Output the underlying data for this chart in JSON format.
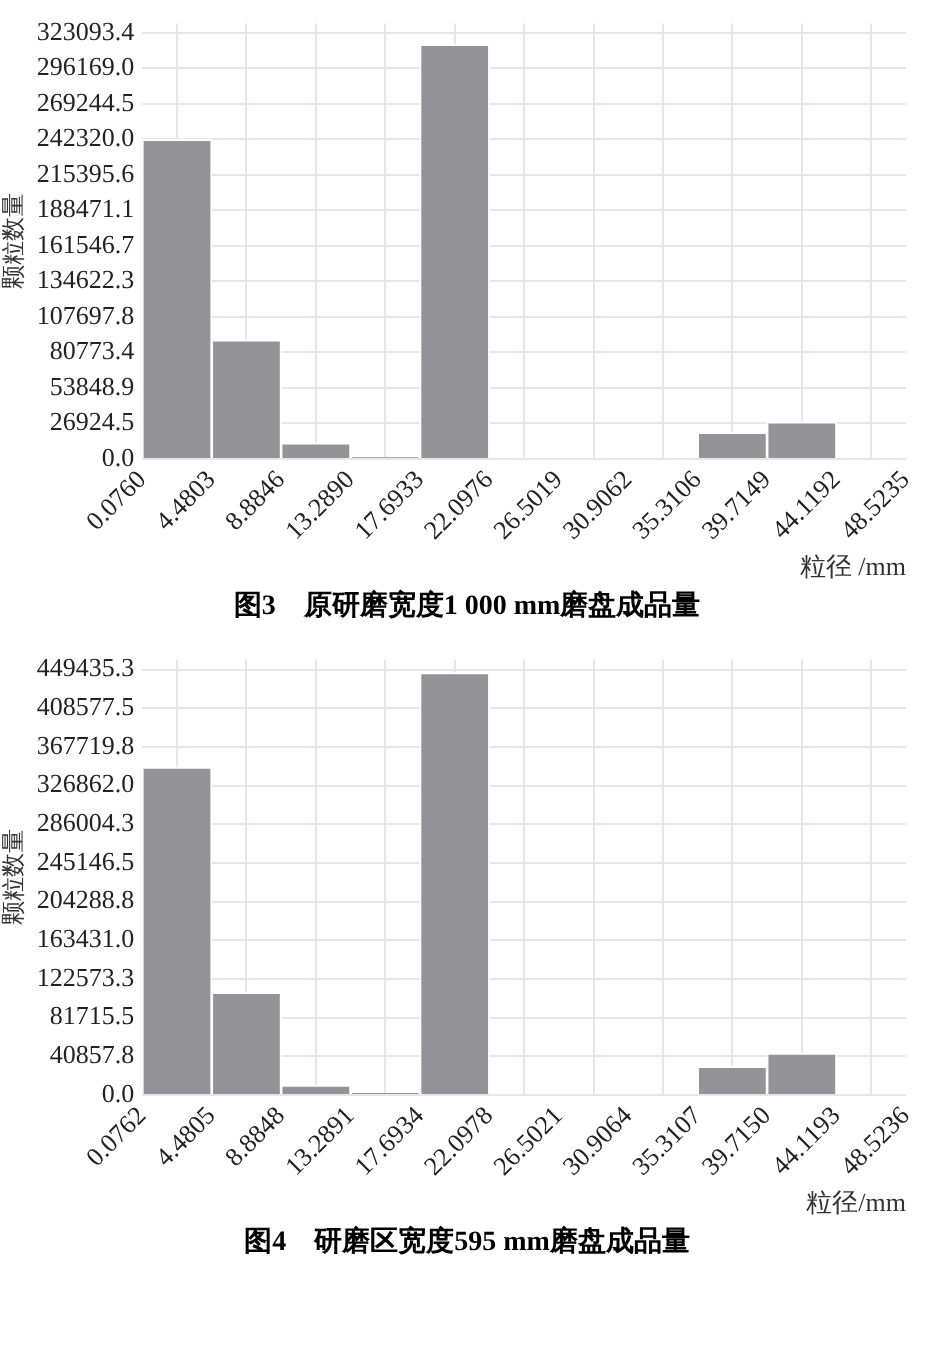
{
  "chart_data": [
    {
      "type": "histogram",
      "title": "图3　原研磨宽度1 000 mm磨盘成品量",
      "xlabel": "粒径 /mm",
      "ylabel": "颗粒数量",
      "color": "#939398",
      "grid": true,
      "bins": [
        0.076,
        4.4803,
        8.8846,
        13.289,
        17.6933,
        22.0976,
        26.5019,
        30.9062,
        35.3106,
        39.7149,
        44.1192,
        48.5235
      ],
      "values": [
        242000,
        90000,
        12000,
        1000,
        314000,
        0,
        0,
        0,
        20000,
        28000,
        0
      ],
      "xlim": [
        0.076,
        48.5235
      ],
      "xticks": [
        {
          "value": 0.076,
          "label": "0.0760"
        },
        {
          "value": 4.4803,
          "label": "4.4803"
        },
        {
          "value": 8.8846,
          "label": "8.8846"
        },
        {
          "value": 13.289,
          "label": "13.2890"
        },
        {
          "value": 17.6933,
          "label": "17.6933"
        },
        {
          "value": 22.0976,
          "label": "22.0976"
        },
        {
          "value": 26.5019,
          "label": "26.5019"
        },
        {
          "value": 30.9062,
          "label": "30.9062"
        },
        {
          "value": 35.3106,
          "label": "35.3106"
        },
        {
          "value": 39.7149,
          "label": "39.7149"
        },
        {
          "value": 44.1192,
          "label": "44.1192"
        },
        {
          "value": 48.5235,
          "label": "48.5235"
        }
      ],
      "ylim": [
        0,
        330000
      ],
      "yticks": [
        {
          "value": 0,
          "label": "0.0"
        },
        {
          "value": 26924.5,
          "label": "26924.5"
        },
        {
          "value": 53848.9,
          "label": "53848.9"
        },
        {
          "value": 80773.4,
          "label": "80773.4"
        },
        {
          "value": 107697.8,
          "label": "107697.8"
        },
        {
          "value": 134622.3,
          "label": "134622.3"
        },
        {
          "value": 161546.7,
          "label": "161546.7"
        },
        {
          "value": 188471.1,
          "label": "188471.1"
        },
        {
          "value": 215395.6,
          "label": "215395.6"
        },
        {
          "value": 242320.0,
          "label": "242320.0"
        },
        {
          "value": 269244.5,
          "label": "269244.5"
        },
        {
          "value": 296169.0,
          "label": "296169.0"
        },
        {
          "value": 323093.4,
          "label": "323093.4"
        }
      ]
    },
    {
      "type": "histogram",
      "title": "图4　研磨区宽度595 mm磨盘成品量",
      "xlabel": "粒径/mm",
      "ylabel": "颗粒数量",
      "color": "#939398",
      "grid": true,
      "bins": [
        0.0762,
        4.4805,
        8.8848,
        13.2891,
        17.6934,
        22.0978,
        26.5021,
        30.9064,
        35.3107,
        39.715,
        44.1193,
        48.5236
      ],
      "values": [
        346000,
        108000,
        10000,
        2000,
        446000,
        0,
        0,
        0,
        30000,
        44000,
        0
      ],
      "xlim": [
        0.0762,
        48.5236
      ],
      "xticks": [
        {
          "value": 0.0762,
          "label": "0.0762"
        },
        {
          "value": 4.4805,
          "label": "4.4805"
        },
        {
          "value": 8.8848,
          "label": "8.8848"
        },
        {
          "value": 13.2891,
          "label": "13.2891"
        },
        {
          "value": 17.6934,
          "label": "17.6934"
        },
        {
          "value": 22.0978,
          "label": "22.0978"
        },
        {
          "value": 26.5021,
          "label": "26.5021"
        },
        {
          "value": 30.9064,
          "label": "30.9064"
        },
        {
          "value": 35.3107,
          "label": "35.3107"
        },
        {
          "value": 39.715,
          "label": "39.7150"
        },
        {
          "value": 44.1193,
          "label": "44.1193"
        },
        {
          "value": 48.5236,
          "label": "48.5236"
        }
      ],
      "ylim": [
        0,
        460000
      ],
      "yticks": [
        {
          "value": 0,
          "label": "0.0"
        },
        {
          "value": 40857.8,
          "label": "40857.8"
        },
        {
          "value": 81715.5,
          "label": "81715.5"
        },
        {
          "value": 122573.3,
          "label": "122573.3"
        },
        {
          "value": 163431.0,
          "label": "163431.0"
        },
        {
          "value": 204288.8,
          "label": "204288.8"
        },
        {
          "value": 245146.5,
          "label": "245146.5"
        },
        {
          "value": 286004.3,
          "label": "286004.3"
        },
        {
          "value": 326862.0,
          "label": "326862.0"
        },
        {
          "value": 367719.8,
          "label": "367719.8"
        },
        {
          "value": 408577.5,
          "label": "408577.5"
        },
        {
          "value": 449435.3,
          "label": "449435.3"
        }
      ]
    }
  ]
}
